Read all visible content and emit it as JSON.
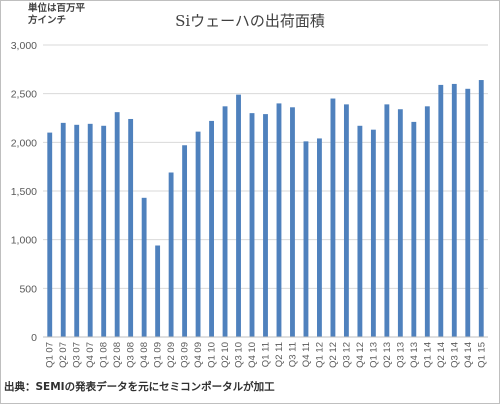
{
  "unit_note": "単位は百万平\n方インチ",
  "source_note": "出典：SEMIの発表データを元にセミコンポータルが加工",
  "colors": {
    "bar": "#4f81bd",
    "grid": "#d9d9d9",
    "axis": "#bfbfbf",
    "text": "#595959"
  },
  "chart_data": {
    "type": "bar",
    "title": "Siウェーハの出荷面積",
    "xlabel": "",
    "ylabel": "",
    "ylim": [
      0,
      3000
    ],
    "yticks": [
      0,
      500,
      1000,
      1500,
      2000,
      2500,
      3000
    ],
    "ytick_labels": [
      "0",
      "500",
      "1,000",
      "1,500",
      "2,000",
      "2,500",
      "3,000"
    ],
    "grid": true,
    "categories": [
      "Q1 07",
      "Q2 07",
      "Q3 07",
      "Q4 07",
      "Q1 08",
      "Q2 08",
      "Q3 08",
      "Q4 08",
      "Q1 09",
      "Q2 09",
      "Q3 09",
      "Q4 09",
      "Q1 10",
      "Q2 10",
      "Q3 10",
      "Q4 10",
      "Q1 11",
      "Q2 11",
      "Q3 11",
      "Q4 11",
      "Q1 12",
      "Q2 12",
      "Q3 12",
      "Q4 12",
      "Q1 13",
      "Q2 13",
      "Q3 13",
      "Q4 13",
      "Q1 14",
      "Q2 14",
      "Q3 14",
      "Q4 14",
      "Q1 15"
    ],
    "values": [
      2100,
      2200,
      2180,
      2190,
      2170,
      2310,
      2240,
      1430,
      940,
      1690,
      1970,
      2110,
      2220,
      2370,
      2490,
      2300,
      2290,
      2400,
      2360,
      2010,
      2040,
      2450,
      2390,
      2170,
      2130,
      2390,
      2340,
      2210,
      2370,
      2590,
      2600,
      2550,
      2640
    ]
  }
}
